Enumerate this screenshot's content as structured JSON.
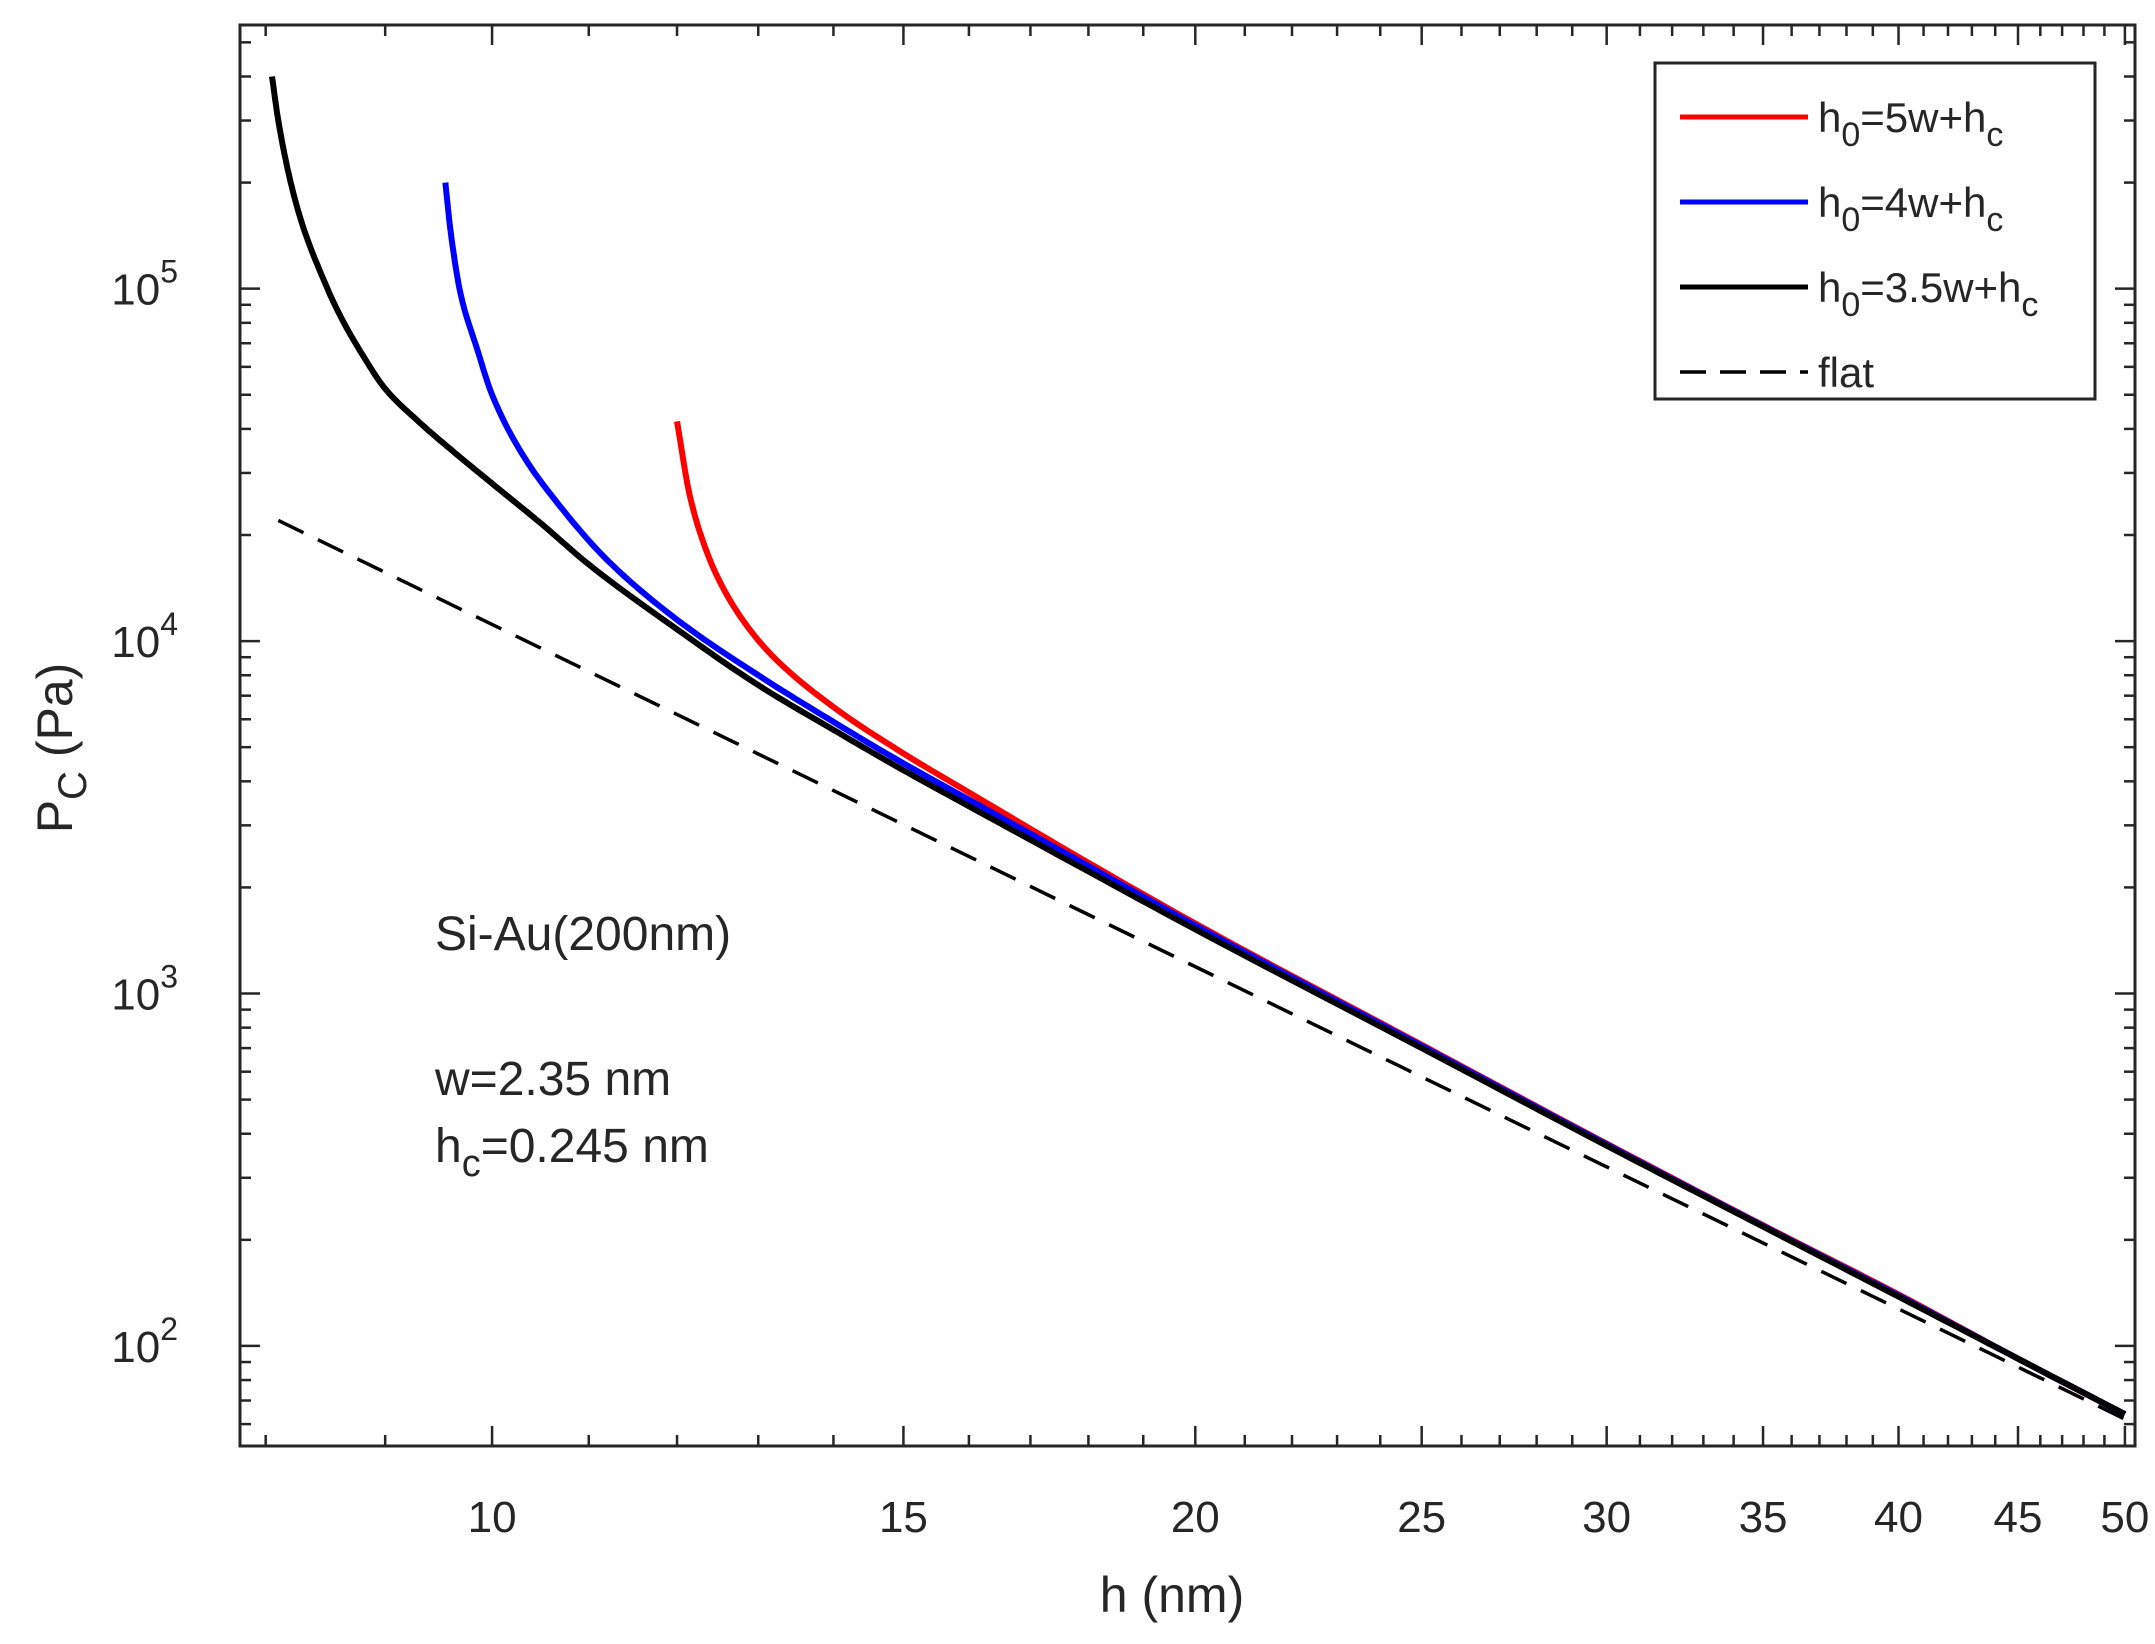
{
  "chart_data": {
    "type": "line",
    "xscale": "log",
    "yscale": "log",
    "xlim": [
      7.8,
      50.5
    ],
    "ylim": [
      52,
      560000
    ],
    "xlabel": "h (nm)",
    "ylabel": {
      "main": "P",
      "sub": "C",
      "rest": " (Pa)"
    },
    "x_tick_labels": [
      {
        "value": 10,
        "label": "10"
      },
      {
        "value": 15,
        "label": "15"
      },
      {
        "value": 20,
        "label": "20"
      },
      {
        "value": 25,
        "label": "25"
      },
      {
        "value": 30,
        "label": "30"
      },
      {
        "value": 35,
        "label": "35"
      },
      {
        "value": 40,
        "label": "40"
      },
      {
        "value": 45,
        "label": "45"
      },
      {
        "value": 50,
        "label": "50"
      }
    ],
    "y_tick_labels": [
      {
        "value": 100,
        "base": "10",
        "exp": "2"
      },
      {
        "value": 1000,
        "base": "10",
        "exp": "3"
      },
      {
        "value": 10000,
        "base": "10",
        "exp": "4"
      },
      {
        "value": 100000,
        "base": "10",
        "exp": "5"
      }
    ],
    "annotations": {
      "material": "Si-Au(200nm)",
      "w": "w=2.35 nm",
      "hc": {
        "main": "h",
        "sub": "c",
        "rest": "=0.245 nm"
      }
    },
    "series": [
      {
        "name": "h0=5w+hc",
        "legend": {
          "a": "h",
          "a_sub": "0",
          "b": "=5w+h",
          "b_sub": "c"
        },
        "color": "#ff0000",
        "dash": "none",
        "x": [
          12.0,
          12.15,
          12.3,
          12.5,
          12.8,
          13.2,
          14.0,
          15.0,
          16.0,
          18.0,
          20.0,
          25.0,
          30.0,
          35.0,
          40.0,
          45.0,
          50.0
        ],
        "y": [
          42000,
          26000,
          19500,
          15000,
          11500,
          9000,
          6500,
          4800,
          3720,
          2350,
          1580,
          715,
          375,
          220,
          140,
          92,
          64
        ]
      },
      {
        "name": "h0=4w+hc",
        "legend": {
          "a": "h",
          "a_sub": "0",
          "b": "=4w+h",
          "b_sub": "c"
        },
        "color": "#0000ff",
        "dash": "none",
        "x": [
          9.55,
          9.6,
          9.7,
          9.85,
          10.0,
          10.3,
          10.7,
          11.2,
          12.0,
          13.0,
          14.0,
          15.0,
          16.0,
          18.0,
          20.0,
          25.0,
          30.0,
          35.0,
          40.0,
          45.0,
          50.0
        ],
        "y": [
          200000,
          145000,
          95000,
          68000,
          50000,
          34000,
          24000,
          17000,
          11500,
          8000,
          5900,
          4500,
          3550,
          2300,
          1560,
          710,
          373,
          219,
          139,
          92,
          64
        ]
      },
      {
        "name": "h0=3.5w+hc",
        "legend": {
          "a": "h",
          "a_sub": "0",
          "b": "=3.5w+h",
          "b_sub": "c"
        },
        "color": "#000000",
        "dash": "none",
        "x": [
          8.05,
          8.1,
          8.2,
          8.3,
          8.45,
          8.6,
          8.8,
          9.0,
          9.3,
          9.6,
          10.0,
          10.5,
          11.0,
          12.0,
          13.0,
          14.0,
          15.0,
          16.0,
          18.0,
          20.0,
          25.0,
          30.0,
          35.0,
          40.0,
          45.0,
          50.0
        ],
        "y": [
          400000,
          300000,
          200000,
          150000,
          110000,
          85000,
          65000,
          52000,
          42000,
          35000,
          28000,
          21500,
          16500,
          10800,
          7500,
          5600,
          4300,
          3400,
          2220,
          1520,
          700,
          370,
          218,
          138,
          92,
          64
        ]
      },
      {
        "name": "flat",
        "legend": {
          "a": "flat",
          "a_sub": "",
          "b": "",
          "b_sub": ""
        },
        "color": "#000000",
        "dash": "28,16",
        "x": [
          8.1,
          50.0
        ],
        "y": [
          22000,
          62
        ]
      }
    ]
  }
}
